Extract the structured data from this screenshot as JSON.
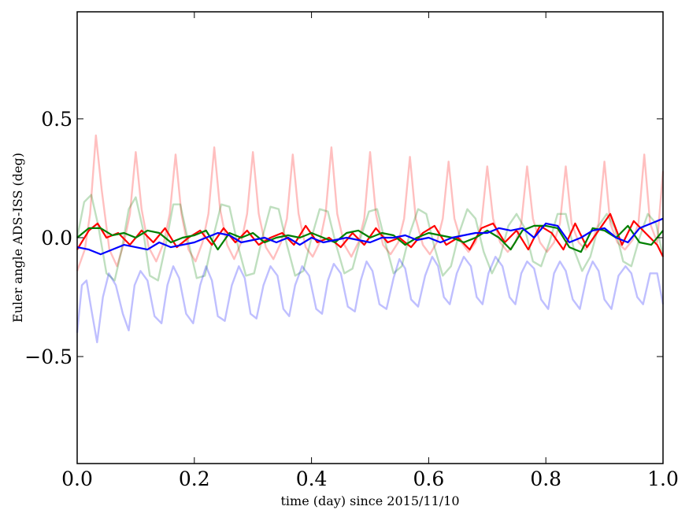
{
  "chart_data": {
    "type": "line",
    "title": "",
    "xlabel": "time (day) since 2015/11/10",
    "ylabel": "Euler angle ADS-ISS (deg)",
    "xlim": [
      0.0,
      1.0
    ],
    "ylim": [
      -0.95,
      0.95
    ],
    "x_ticks": [
      0.0,
      0.2,
      0.4,
      0.6,
      0.8,
      1.0
    ],
    "x_tick_labels": [
      "0.0",
      "0.2",
      "0.4",
      "0.6",
      "0.8",
      "1.0"
    ],
    "y_ticks": [
      0.5,
      0.0,
      -0.5
    ],
    "y_tick_labels": [
      "0.5",
      "0.0",
      "−0.5"
    ],
    "grid": false,
    "legend": "none",
    "series": [
      {
        "color": "#ff0000",
        "alpha": 0.25,
        "style": "periodic peaks",
        "x": [
          0.0,
          0.013,
          0.022,
          0.032,
          0.042,
          0.055,
          0.068,
          0.08,
          0.09,
          0.1,
          0.11,
          0.122,
          0.135,
          0.148,
          0.158,
          0.168,
          0.178,
          0.19,
          0.202,
          0.214,
          0.224,
          0.234,
          0.244,
          0.256,
          0.268,
          0.28,
          0.29,
          0.3,
          0.31,
          0.322,
          0.335,
          0.348,
          0.358,
          0.368,
          0.378,
          0.39,
          0.402,
          0.414,
          0.424,
          0.434,
          0.444,
          0.456,
          0.468,
          0.48,
          0.49,
          0.5,
          0.51,
          0.522,
          0.535,
          0.548,
          0.558,
          0.568,
          0.578,
          0.59,
          0.602,
          0.614,
          0.624,
          0.634,
          0.644,
          0.656,
          0.668,
          0.68,
          0.69,
          0.7,
          0.71,
          0.722,
          0.735,
          0.748,
          0.758,
          0.768,
          0.778,
          0.79,
          0.802,
          0.814,
          0.824,
          0.834,
          0.844,
          0.856,
          0.868,
          0.88,
          0.89,
          0.9,
          0.91,
          0.922,
          0.935,
          0.948,
          0.958,
          0.968,
          0.978,
          0.99,
          1.0
        ],
        "y": [
          -0.14,
          -0.05,
          0.1,
          0.43,
          0.2,
          -0.05,
          -0.12,
          -0.02,
          0.1,
          0.36,
          0.12,
          -0.04,
          -0.1,
          -0.02,
          0.1,
          0.35,
          0.1,
          -0.05,
          -0.1,
          -0.02,
          0.1,
          0.38,
          0.12,
          -0.03,
          -0.09,
          -0.02,
          0.1,
          0.36,
          0.1,
          -0.04,
          -0.09,
          -0.02,
          0.08,
          0.35,
          0.1,
          -0.04,
          -0.08,
          -0.02,
          0.1,
          0.38,
          0.1,
          -0.03,
          -0.08,
          -0.02,
          0.08,
          0.36,
          0.1,
          -0.03,
          -0.07,
          -0.02,
          0.08,
          0.34,
          0.08,
          -0.03,
          -0.07,
          -0.02,
          0.08,
          0.32,
          0.08,
          -0.02,
          -0.06,
          -0.02,
          0.06,
          0.3,
          0.08,
          -0.02,
          -0.06,
          -0.02,
          0.06,
          0.3,
          0.08,
          -0.02,
          -0.06,
          -0.02,
          0.06,
          0.3,
          0.06,
          -0.02,
          -0.05,
          -0.01,
          0.06,
          0.32,
          0.06,
          -0.02,
          -0.05,
          -0.01,
          0.06,
          0.35,
          0.06,
          -0.02,
          0.28
        ]
      },
      {
        "color": "#008000",
        "alpha": 0.25,
        "style": "periodic wave",
        "x": [
          0.0,
          0.012,
          0.024,
          0.036,
          0.05,
          0.064,
          0.076,
          0.088,
          0.1,
          0.112,
          0.124,
          0.138,
          0.152,
          0.164,
          0.176,
          0.19,
          0.204,
          0.218,
          0.232,
          0.246,
          0.26,
          0.274,
          0.288,
          0.302,
          0.316,
          0.33,
          0.344,
          0.358,
          0.372,
          0.386,
          0.4,
          0.414,
          0.428,
          0.442,
          0.456,
          0.47,
          0.484,
          0.498,
          0.512,
          0.526,
          0.54,
          0.554,
          0.568,
          0.582,
          0.596,
          0.61,
          0.624,
          0.638,
          0.652,
          0.666,
          0.68,
          0.694,
          0.708,
          0.722,
          0.736,
          0.75,
          0.764,
          0.778,
          0.792,
          0.806,
          0.82,
          0.834,
          0.848,
          0.862,
          0.876,
          0.89,
          0.904,
          0.918,
          0.932,
          0.946,
          0.96,
          0.974,
          0.988,
          1.0
        ],
        "y": [
          0.0,
          0.15,
          0.18,
          0.05,
          -0.15,
          -0.18,
          -0.05,
          0.12,
          0.17,
          0.04,
          -0.16,
          -0.18,
          -0.02,
          0.14,
          0.14,
          -0.02,
          -0.17,
          -0.16,
          0.0,
          0.14,
          0.13,
          -0.03,
          -0.16,
          -0.15,
          0.0,
          0.13,
          0.12,
          -0.03,
          -0.16,
          -0.14,
          0.0,
          0.12,
          0.11,
          -0.03,
          -0.15,
          -0.13,
          0.0,
          0.11,
          0.12,
          -0.02,
          -0.15,
          -0.12,
          0.02,
          0.12,
          0.1,
          -0.04,
          -0.16,
          -0.12,
          0.02,
          0.12,
          0.08,
          -0.06,
          -0.15,
          -0.08,
          0.05,
          0.1,
          0.04,
          -0.1,
          -0.12,
          -0.02,
          0.1,
          0.1,
          -0.05,
          -0.14,
          -0.08,
          0.05,
          0.1,
          0.04,
          -0.1,
          -0.12,
          0.0,
          0.1,
          0.06,
          -0.08
        ]
      },
      {
        "color": "#0000ff",
        "alpha": 0.25,
        "style": "periodic troughs",
        "x": [
          0.0,
          0.008,
          0.016,
          0.024,
          0.034,
          0.044,
          0.054,
          0.066,
          0.078,
          0.088,
          0.098,
          0.108,
          0.12,
          0.132,
          0.144,
          0.154,
          0.164,
          0.174,
          0.186,
          0.198,
          0.21,
          0.22,
          0.23,
          0.24,
          0.252,
          0.264,
          0.276,
          0.286,
          0.296,
          0.306,
          0.318,
          0.33,
          0.342,
          0.352,
          0.362,
          0.372,
          0.384,
          0.396,
          0.408,
          0.418,
          0.428,
          0.438,
          0.45,
          0.462,
          0.474,
          0.484,
          0.494,
          0.504,
          0.516,
          0.528,
          0.54,
          0.55,
          0.56,
          0.57,
          0.582,
          0.594,
          0.606,
          0.616,
          0.626,
          0.636,
          0.648,
          0.66,
          0.672,
          0.682,
          0.692,
          0.702,
          0.714,
          0.726,
          0.738,
          0.748,
          0.758,
          0.768,
          0.78,
          0.792,
          0.804,
          0.814,
          0.824,
          0.834,
          0.846,
          0.858,
          0.87,
          0.88,
          0.89,
          0.9,
          0.912,
          0.924,
          0.936,
          0.946,
          0.956,
          0.966,
          0.978,
          0.99,
          1.0
        ],
        "y": [
          -0.4,
          -0.2,
          -0.18,
          -0.3,
          -0.44,
          -0.25,
          -0.15,
          -0.2,
          -0.32,
          -0.39,
          -0.2,
          -0.14,
          -0.18,
          -0.33,
          -0.36,
          -0.2,
          -0.12,
          -0.17,
          -0.32,
          -0.36,
          -0.2,
          -0.12,
          -0.18,
          -0.33,
          -0.35,
          -0.2,
          -0.12,
          -0.17,
          -0.32,
          -0.34,
          -0.2,
          -0.12,
          -0.16,
          -0.3,
          -0.33,
          -0.2,
          -0.12,
          -0.16,
          -0.3,
          -0.32,
          -0.18,
          -0.11,
          -0.15,
          -0.29,
          -0.31,
          -0.18,
          -0.1,
          -0.14,
          -0.28,
          -0.3,
          -0.17,
          -0.09,
          -0.13,
          -0.26,
          -0.29,
          -0.16,
          -0.08,
          -0.12,
          -0.25,
          -0.28,
          -0.15,
          -0.08,
          -0.12,
          -0.25,
          -0.28,
          -0.15,
          -0.08,
          -0.12,
          -0.25,
          -0.28,
          -0.15,
          -0.1,
          -0.13,
          -0.26,
          -0.3,
          -0.15,
          -0.1,
          -0.14,
          -0.26,
          -0.3,
          -0.16,
          -0.1,
          -0.14,
          -0.26,
          -0.3,
          -0.16,
          -0.12,
          -0.15,
          -0.25,
          -0.28,
          -0.15,
          -0.15,
          -0.28
        ]
      },
      {
        "color": "#ff0000",
        "alpha": 1.0,
        "style": "noisy",
        "x": [
          0.0,
          0.02,
          0.035,
          0.05,
          0.07,
          0.09,
          0.11,
          0.13,
          0.15,
          0.17,
          0.19,
          0.21,
          0.23,
          0.25,
          0.27,
          0.29,
          0.31,
          0.33,
          0.35,
          0.37,
          0.39,
          0.41,
          0.43,
          0.45,
          0.47,
          0.49,
          0.51,
          0.53,
          0.55,
          0.57,
          0.59,
          0.61,
          0.63,
          0.65,
          0.67,
          0.69,
          0.71,
          0.73,
          0.75,
          0.77,
          0.79,
          0.81,
          0.83,
          0.85,
          0.87,
          0.89,
          0.91,
          0.93,
          0.95,
          0.97,
          0.99,
          1.0
        ],
        "y": [
          -0.05,
          0.03,
          0.06,
          0.0,
          0.02,
          -0.03,
          0.03,
          -0.02,
          0.04,
          -0.04,
          0.0,
          0.03,
          -0.03,
          0.04,
          -0.02,
          0.03,
          -0.03,
          0.0,
          0.02,
          -0.03,
          0.05,
          -0.02,
          0.0,
          -0.04,
          0.02,
          -0.03,
          0.04,
          -0.02,
          0.0,
          -0.04,
          0.02,
          0.05,
          -0.03,
          0.0,
          -0.05,
          0.04,
          0.06,
          -0.02,
          0.03,
          -0.05,
          0.05,
          0.02,
          -0.05,
          0.06,
          -0.04,
          0.03,
          0.1,
          -0.03,
          0.07,
          0.02,
          -0.03,
          -0.08
        ]
      },
      {
        "color": "#008000",
        "alpha": 1.0,
        "style": "noisy",
        "x": [
          0.0,
          0.02,
          0.04,
          0.06,
          0.08,
          0.1,
          0.12,
          0.14,
          0.16,
          0.18,
          0.2,
          0.22,
          0.24,
          0.26,
          0.28,
          0.3,
          0.32,
          0.34,
          0.36,
          0.38,
          0.4,
          0.42,
          0.44,
          0.46,
          0.48,
          0.5,
          0.52,
          0.54,
          0.56,
          0.58,
          0.6,
          0.62,
          0.64,
          0.66,
          0.68,
          0.7,
          0.72,
          0.74,
          0.76,
          0.78,
          0.8,
          0.82,
          0.84,
          0.86,
          0.88,
          0.9,
          0.92,
          0.94,
          0.96,
          0.98,
          1.0
        ],
        "y": [
          0.0,
          0.04,
          0.04,
          0.01,
          0.02,
          0.0,
          0.03,
          0.02,
          -0.02,
          0.0,
          0.01,
          0.03,
          -0.05,
          0.02,
          0.0,
          0.02,
          -0.02,
          0.0,
          0.01,
          0.0,
          0.02,
          0.0,
          -0.02,
          0.02,
          0.03,
          0.0,
          0.02,
          0.01,
          -0.03,
          0.0,
          0.02,
          0.01,
          0.0,
          -0.02,
          0.0,
          0.03,
          0.0,
          -0.05,
          0.03,
          0.05,
          0.05,
          0.04,
          -0.04,
          -0.06,
          0.04,
          0.03,
          0.0,
          0.05,
          -0.02,
          -0.03,
          0.03
        ]
      },
      {
        "color": "#0000ff",
        "alpha": 1.0,
        "style": "noisy",
        "x": [
          0.0,
          0.02,
          0.04,
          0.06,
          0.08,
          0.1,
          0.12,
          0.14,
          0.16,
          0.18,
          0.2,
          0.22,
          0.24,
          0.26,
          0.28,
          0.3,
          0.32,
          0.34,
          0.36,
          0.38,
          0.4,
          0.42,
          0.44,
          0.46,
          0.48,
          0.5,
          0.52,
          0.54,
          0.56,
          0.58,
          0.6,
          0.62,
          0.64,
          0.66,
          0.68,
          0.7,
          0.72,
          0.74,
          0.76,
          0.78,
          0.8,
          0.82,
          0.84,
          0.86,
          0.88,
          0.9,
          0.92,
          0.94,
          0.96,
          0.98,
          1.0
        ],
        "y": [
          -0.04,
          -0.05,
          -0.07,
          -0.05,
          -0.03,
          -0.04,
          -0.05,
          -0.02,
          -0.04,
          -0.03,
          -0.02,
          0.0,
          0.02,
          0.01,
          -0.02,
          -0.01,
          0.0,
          -0.02,
          0.0,
          -0.03,
          0.0,
          -0.02,
          -0.01,
          0.0,
          -0.01,
          -0.02,
          0.0,
          0.0,
          0.01,
          -0.01,
          0.0,
          -0.02,
          0.0,
          0.01,
          0.02,
          0.02,
          0.04,
          0.03,
          0.04,
          0.0,
          0.06,
          0.05,
          -0.02,
          0.0,
          0.03,
          0.04,
          0.0,
          -0.02,
          0.04,
          0.06,
          0.08
        ]
      }
    ]
  }
}
